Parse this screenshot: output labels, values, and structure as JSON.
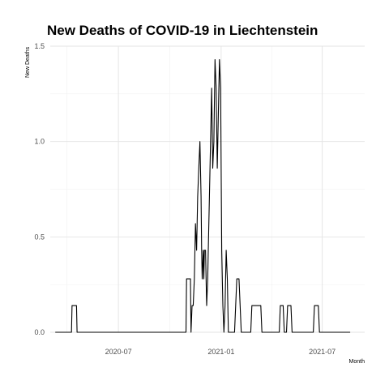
{
  "chart_data": {
    "type": "line",
    "title": "New Deaths of COVID-19 in Liechtenstein",
    "xlabel": "Month",
    "ylabel": "New Deaths",
    "grid": true,
    "x_ticks": [
      "2020-07",
      "2021-01",
      "2021-07"
    ],
    "y_ticks": [
      "0.0",
      "0.5",
      "1.0",
      "1.5"
    ],
    "xlim": [
      "2020-03-01",
      "2021-09-15"
    ],
    "ylim": [
      0,
      1.5
    ],
    "series": [
      {
        "color": "#000000",
        "points": [
          [
            "2020-03-10",
            0
          ],
          [
            "2020-04-08",
            0
          ],
          [
            "2020-04-09",
            0.14
          ],
          [
            "2020-04-17",
            0.14
          ],
          [
            "2020-04-18",
            0
          ],
          [
            "2020-10-30",
            0
          ],
          [
            "2020-10-31",
            0.28
          ],
          [
            "2020-11-07",
            0.28
          ],
          [
            "2020-11-08",
            0
          ],
          [
            "2020-11-10",
            0.14
          ],
          [
            "2020-11-12",
            0.14
          ],
          [
            "2020-11-14",
            0.28
          ],
          [
            "2020-11-16",
            0.57
          ],
          [
            "2020-11-18",
            0.43
          ],
          [
            "2020-11-20",
            0.71
          ],
          [
            "2020-11-22",
            0.86
          ],
          [
            "2020-11-24",
            1.0
          ],
          [
            "2020-11-26",
            0.71
          ],
          [
            "2020-11-27",
            0.43
          ],
          [
            "2020-11-28",
            0.28
          ],
          [
            "2020-11-30",
            0.43
          ],
          [
            "2020-12-01",
            0.28
          ],
          [
            "2020-12-02",
            0.43
          ],
          [
            "2020-12-04",
            0.43
          ],
          [
            "2020-12-05",
            0.28
          ],
          [
            "2020-12-06",
            0.14
          ],
          [
            "2020-12-08",
            0.28
          ],
          [
            "2020-12-09",
            0.43
          ],
          [
            "2020-12-11",
            0.71
          ],
          [
            "2020-12-13",
            1.0
          ],
          [
            "2020-12-15",
            1.28
          ],
          [
            "2020-12-17",
            0.86
          ],
          [
            "2020-12-19",
            1.0
          ],
          [
            "2020-12-21",
            1.43
          ],
          [
            "2020-12-23",
            1.28
          ],
          [
            "2020-12-25",
            0.86
          ],
          [
            "2020-12-27",
            1.14
          ],
          [
            "2020-12-29",
            1.43
          ],
          [
            "2020-12-31",
            1.28
          ],
          [
            "2021-01-02",
            0.43
          ],
          [
            "2021-01-04",
            0.14
          ],
          [
            "2021-01-06",
            0.0
          ],
          [
            "2021-01-08",
            0.14
          ],
          [
            "2021-01-10",
            0.43
          ],
          [
            "2021-01-12",
            0.28
          ],
          [
            "2021-01-14",
            0.0
          ],
          [
            "2021-01-25",
            0.0
          ],
          [
            "2021-01-27",
            0.14
          ],
          [
            "2021-01-29",
            0.28
          ],
          [
            "2021-02-02",
            0.28
          ],
          [
            "2021-02-06",
            0.0
          ],
          [
            "2021-02-23",
            0.0
          ],
          [
            "2021-02-25",
            0.14
          ],
          [
            "2021-03-13",
            0.14
          ],
          [
            "2021-03-15",
            0.0
          ],
          [
            "2021-04-15",
            0.0
          ],
          [
            "2021-04-17",
            0.14
          ],
          [
            "2021-04-22",
            0.14
          ],
          [
            "2021-04-24",
            0.0
          ],
          [
            "2021-04-28",
            0.0
          ],
          [
            "2021-04-30",
            0.14
          ],
          [
            "2021-05-06",
            0.14
          ],
          [
            "2021-05-08",
            0.0
          ],
          [
            "2021-06-15",
            0.0
          ],
          [
            "2021-06-17",
            0.14
          ],
          [
            "2021-06-24",
            0.14
          ],
          [
            "2021-06-26",
            0.0
          ],
          [
            "2021-08-20",
            0.0
          ]
        ]
      }
    ]
  }
}
